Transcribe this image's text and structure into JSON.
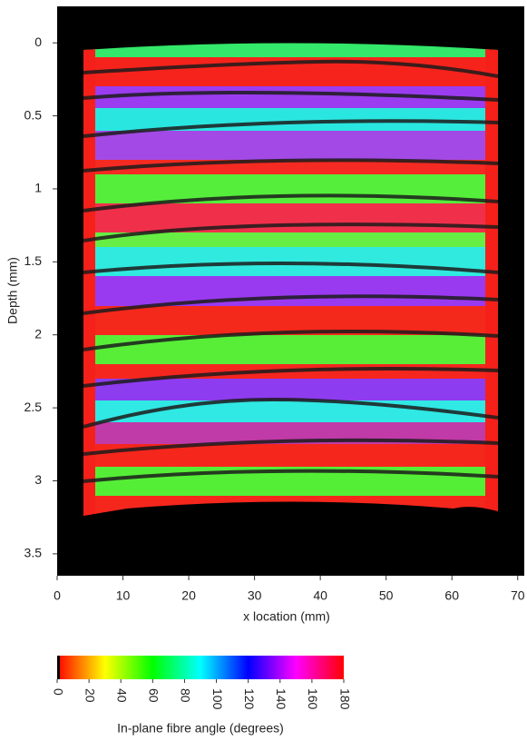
{
  "chart_data": {
    "type": "heatmap",
    "x_label": "x location (mm)",
    "y_label": "Depth (mm)",
    "xlim": [
      0,
      71
    ],
    "xticks": [
      0,
      10,
      20,
      30,
      40,
      50,
      60,
      70
    ],
    "ylim": [
      -0.25,
      3.65
    ],
    "yticks": [
      0,
      0.5,
      1,
      1.5,
      2,
      2.5,
      3,
      3.5
    ],
    "y_inverted": true,
    "colorbar": {
      "label": "In-plane fibre angle (degrees)",
      "lim": [
        0,
        180
      ],
      "ticks": [
        0,
        20,
        40,
        60,
        80,
        100,
        120,
        140,
        160,
        180
      ],
      "colors": [
        "#ff0000",
        "#ff8000",
        "#ffff00",
        "#80ff00",
        "#00ff00",
        "#00ff80",
        "#00ffff",
        "#0080ff",
        "#0000ff",
        "#8000ff",
        "#ff00ff",
        "#ff0080",
        "#ff0000"
      ]
    }
  }
}
